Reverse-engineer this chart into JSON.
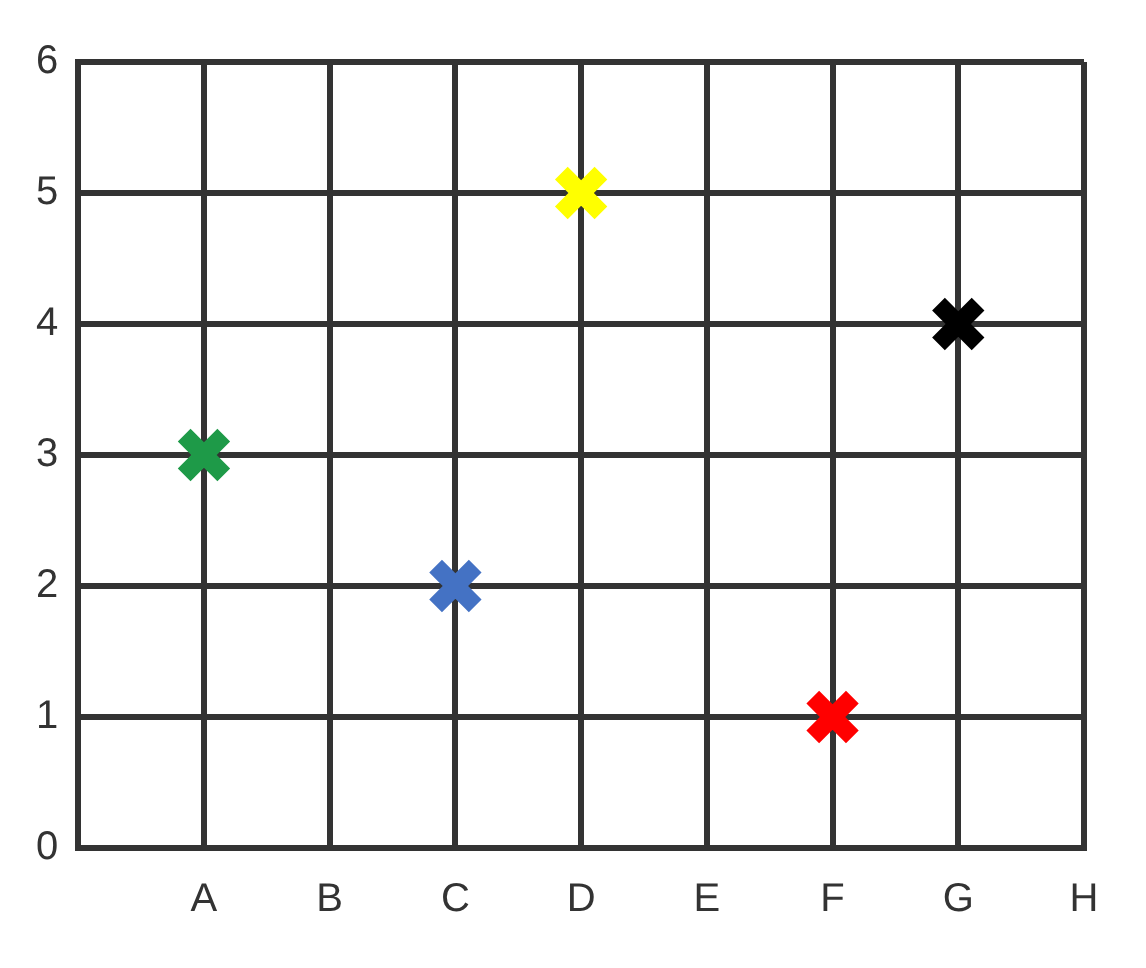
{
  "chart_data": {
    "type": "scatter",
    "categories": [
      null,
      "A",
      "B",
      "C",
      "D",
      "E",
      "F",
      "G",
      "H"
    ],
    "values": [
      null,
      3,
      null,
      2,
      5,
      null,
      1,
      4,
      null
    ],
    "colors": [
      "#000000",
      "#1e9a48",
      "#000000",
      "#4472c4",
      "#ffff00",
      "#000000",
      "#ff0000",
      "#000000",
      "#000000"
    ],
    "ylim": [
      0,
      6
    ],
    "yticks": [
      0,
      1,
      2,
      3,
      4,
      5,
      6
    ],
    "grid": true,
    "marker": "cross",
    "legend": false
  }
}
